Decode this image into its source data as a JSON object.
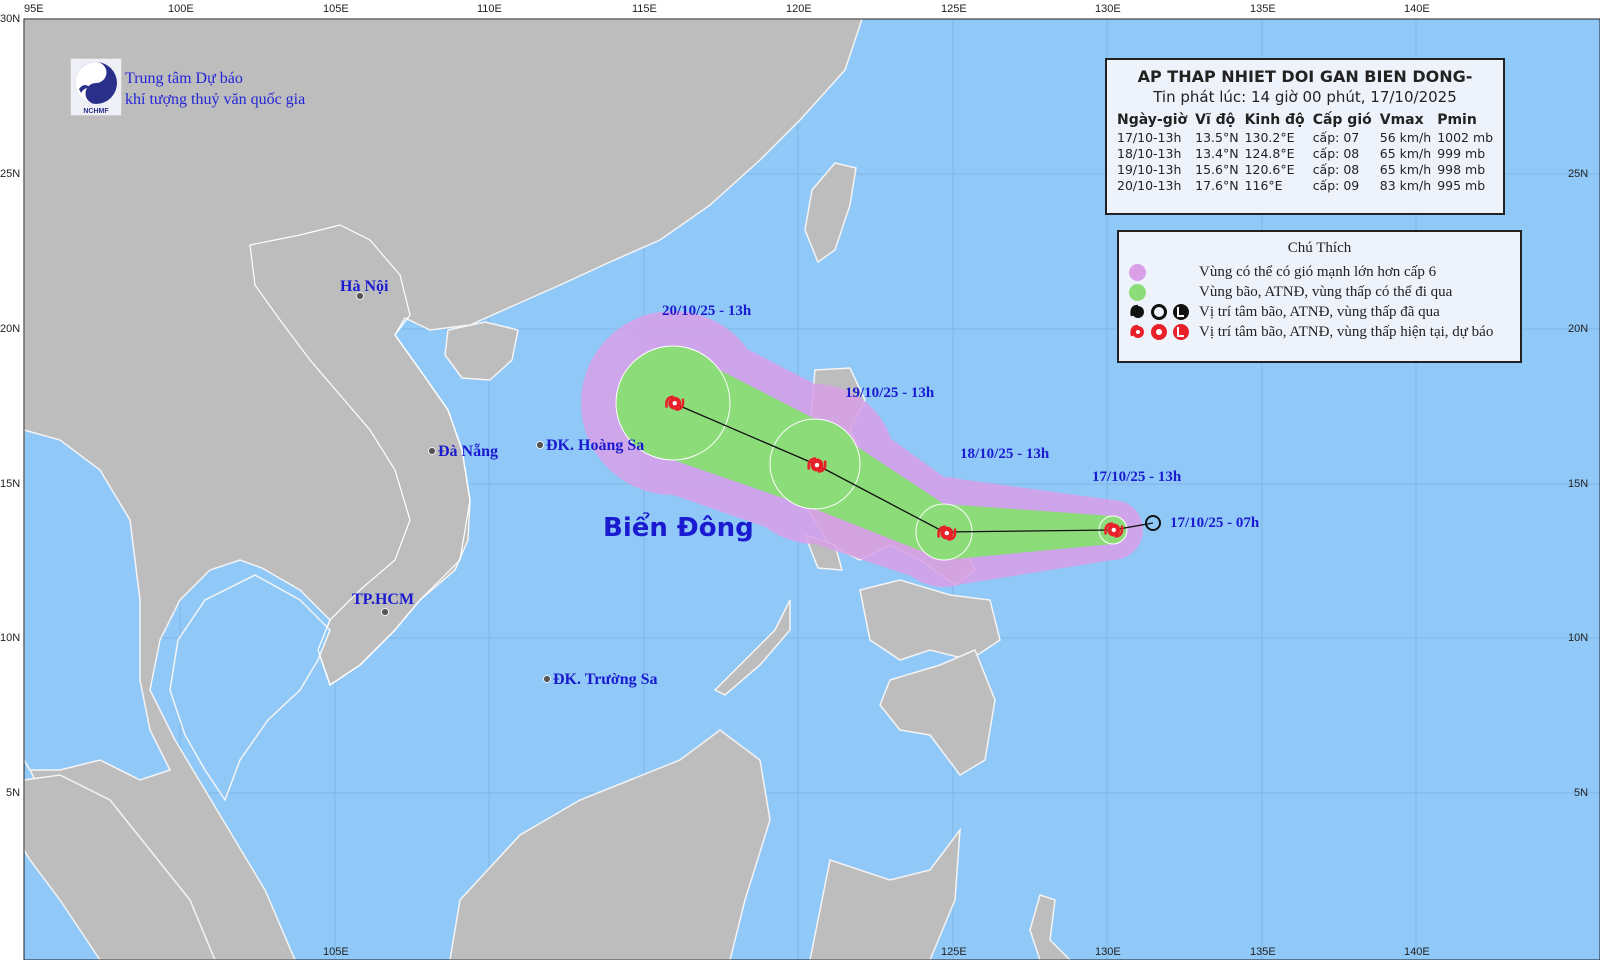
{
  "organization": {
    "logo_text": "NCHMF",
    "name_line1": "Trung tâm Dự báo",
    "name_line2": "khí tượng thuỷ văn quốc gia"
  },
  "bulletin": {
    "title": "AP THAP NHIET DOI GAN BIEN DONG-",
    "issued": "Tin phát lúc: 14 giờ 00 phút, 17/10/2025",
    "columns": [
      "Ngày-giờ",
      "Vĩ độ",
      "Kinh độ",
      "Cấp gió",
      "Vmax",
      "Pmin"
    ],
    "rows": [
      [
        "17/10-13h",
        "13.5°N",
        "130.2°E",
        "cấp: 07",
        "56 km/h",
        "1002 mb"
      ],
      [
        "18/10-13h",
        "13.4°N",
        "124.8°E",
        "cấp: 08",
        "65 km/h",
        "999 mb"
      ],
      [
        "19/10-13h",
        "15.6°N",
        "120.6°E",
        "cấp: 08",
        "65 km/h",
        "998 mb"
      ],
      [
        "20/10-13h",
        "17.6°N",
        "116°E",
        "cấp: 09",
        "83 km/h",
        "995 mb"
      ]
    ]
  },
  "legend": {
    "title": "Chú Thích",
    "items": [
      {
        "label": "Vùng có thể có gió mạnh lớn hơn cấp 6",
        "icon": "purple-circle",
        "color": "#d9a0e8"
      },
      {
        "label": "Vùng bão, ATNĐ, vùng thấp có thể đi qua",
        "icon": "green-circle",
        "color": "#8ddc7a"
      },
      {
        "label": "Vị trí tâm bão, ATNĐ, vùng thấp đã qua",
        "icon": "black-storm-symbols",
        "color": "#111111"
      },
      {
        "label": "Vị trí tâm bão, ATNĐ, vùng thấp hiện tại, dự báo",
        "icon": "red-storm-symbols",
        "color": "#e8202a"
      }
    ]
  },
  "axes": {
    "lon_labels": [
      "95E",
      "100E",
      "105E",
      "110E",
      "115E",
      "120E",
      "125E",
      "130E",
      "135E",
      "140E"
    ],
    "lat_labels": [
      "30N",
      "25N",
      "20N",
      "15N",
      "10N",
      "5N"
    ]
  },
  "track": {
    "past": {
      "label": "17/10/25 - 07h"
    },
    "points": [
      {
        "label": "17/10/25 - 13h",
        "lat": 13.5,
        "lon": 130.2
      },
      {
        "label": "18/10/25 - 13h",
        "lat": 13.4,
        "lon": 124.8
      },
      {
        "label": "19/10/25 - 13h",
        "lat": 15.6,
        "lon": 120.6
      },
      {
        "label": "20/10/25 - 13h",
        "lat": 17.6,
        "lon": 116.0
      }
    ]
  },
  "places": {
    "sea": "Biển Đông",
    "hanoi": "Hà Nội",
    "danang": "Đà Nẵng",
    "hoangsa": "ĐK. Hoàng Sa",
    "hcm": "TP.HCM",
    "truongsa": "ĐK. Trường Sa"
  },
  "colors": {
    "sea": "#90c8f8",
    "land": "#bdbdbd",
    "wind_zone": "#d9a0e8",
    "storm_zone": "#8ddc7a",
    "storm_symbol": "#e8202a",
    "label": "#1a1ad0"
  }
}
